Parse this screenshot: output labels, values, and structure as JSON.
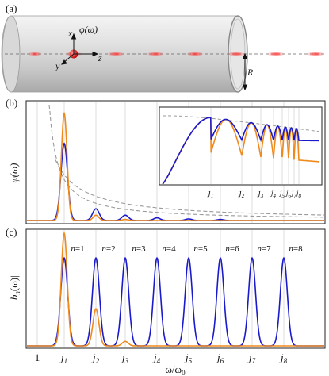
{
  "panels": {
    "a": {
      "tag": "(a)",
      "phi_label": "φ(ω)",
      "axes": {
        "x": "x",
        "y": "y",
        "z": "z"
      },
      "radius_label": "R"
    },
    "b": {
      "tag": "(b)",
      "ylabel": "φ(ω)",
      "inset_ticks": [
        "j1",
        "j2",
        "j3",
        "j4",
        "j5",
        "j6",
        "j7",
        "j8"
      ]
    },
    "c": {
      "tag": "(c)",
      "ylabel": "|bn(ω)|",
      "mode_labels": [
        "n=1",
        "n=2",
        "n=3",
        "n=4",
        "n=5",
        "n=6",
        "n=7",
        "n=8"
      ],
      "xticks": [
        "1",
        "j1",
        "j2",
        "j3",
        "j4",
        "j5",
        "j6",
        "j7",
        "j8"
      ],
      "xlabel": "ω/ω0"
    }
  },
  "colors": {
    "blue": "#1a1acc",
    "orange": "#f08a1c",
    "red": "#e02020",
    "dash": "#999999"
  },
  "chart_data": [
    {
      "type": "line",
      "panel": "b",
      "xlabel": "",
      "ylabel": "φ(ω)",
      "xlim": [
        0.4,
        9.7
      ],
      "x_ticks": [
        1,
        2.405,
        5.52,
        8.654,
        11.79,
        14.93,
        18.07,
        21.21,
        24.35
      ],
      "peaks": {
        "blue": [
          {
            "x": 2.405,
            "h": 0.72
          },
          {
            "x": 5.52,
            "h": 0.11
          },
          {
            "x": 8.654,
            "h": 0.05
          },
          {
            "x": 11.79,
            "h": 0.025
          },
          {
            "x": 14.93,
            "h": 0.015
          },
          {
            "x": 18.07,
            "h": 0.01
          }
        ],
        "orange": [
          {
            "x": 2.405,
            "h": 1.0
          },
          {
            "x": 5.52,
            "h": 0.05
          },
          {
            "x": 8.654,
            "h": 0.01
          }
        ]
      },
      "series": [
        {
          "name": "",
          "color": "blue"
        },
        {
          "name": "",
          "color": "orange"
        }
      ]
    },
    {
      "type": "line",
      "panel": "c",
      "xlabel": "ω/ω0",
      "ylabel": "|bn(ω)|",
      "peaks": {
        "blue": [
          {
            "n": 1,
            "h": 0.78
          },
          {
            "n": 2,
            "h": 0.78
          },
          {
            "n": 3,
            "h": 0.78
          },
          {
            "n": 4,
            "h": 0.78
          },
          {
            "n": 5,
            "h": 0.78
          },
          {
            "n": 6,
            "h": 0.78
          },
          {
            "n": 7,
            "h": 0.78
          },
          {
            "n": 8,
            "h": 0.78
          }
        ],
        "orange": [
          {
            "n": 1,
            "h": 1.0
          },
          {
            "n": 2,
            "h": 0.33
          },
          {
            "n": 3,
            "h": 0.04
          }
        ]
      }
    }
  ]
}
